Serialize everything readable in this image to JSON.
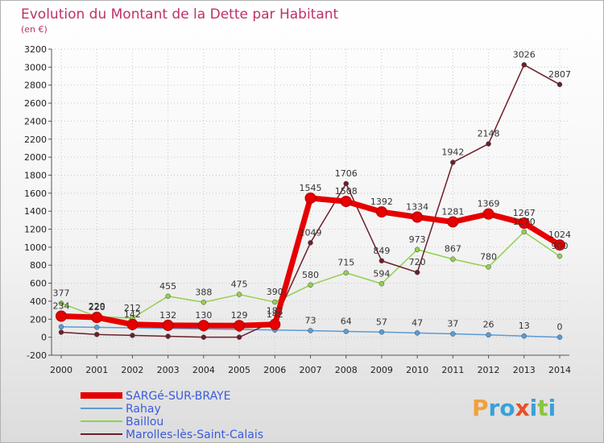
{
  "chart_data": {
    "type": "line",
    "title": "Evolution du Montant de la Dette par Habitant",
    "subtitle": "(en €)",
    "xlabel": "",
    "ylabel": "",
    "ylim": [
      -200,
      3200
    ],
    "ytick_step": 200,
    "x": [
      "2000",
      "2001",
      "2002",
      "2003",
      "2004",
      "2005",
      "2006",
      "2007",
      "2008",
      "2009",
      "2010",
      "2011",
      "2012",
      "2013",
      "2014"
    ],
    "series": [
      {
        "name": "SARGé-SUR-BRAYE",
        "color": "#e60000",
        "style": "thick",
        "values": [
          234,
          220,
          142,
          132,
          130,
          129,
          142,
          1545,
          1508,
          1392,
          1334,
          1281,
          1369,
          1267,
          1024
        ],
        "labels": [
          "234",
          "220",
          "142",
          "132",
          "130",
          "129",
          "142",
          "1545",
          "1508",
          "1392",
          "1334",
          "1281",
          "1369",
          "1267",
          "1024"
        ]
      },
      {
        "name": "Rahay",
        "color": "#5b9bd5",
        "style": "thin",
        "values": [
          115,
          110,
          104,
          98,
          92,
          86,
          80,
          73,
          64,
          57,
          47,
          37,
          26,
          13,
          0
        ],
        "labels": [
          "",
          "",
          "",
          "",
          "",
          "",
          "",
          "73",
          "64",
          "57",
          "47",
          "37",
          "26",
          "13",
          "0"
        ]
      },
      {
        "name": "Baillou",
        "color": "#92d050",
        "style": "thin",
        "values": [
          377,
          229,
          212,
          455,
          388,
          475,
          390,
          580,
          715,
          594,
          973,
          867,
          780,
          1170,
          900
        ],
        "labels": [
          "377",
          "229",
          "212",
          "455",
          "388",
          "475",
          "390",
          "580",
          "715",
          "594",
          "973",
          "867",
          "780",
          "1170",
          "900"
        ]
      },
      {
        "name": "Marolles-lès-Saint-Calais",
        "color": "#6b1f2a",
        "style": "thin",
        "values": [
          55,
          30,
          20,
          10,
          0,
          0,
          182,
          1049,
          1706,
          849,
          720,
          1942,
          2148,
          3026,
          2807
        ],
        "labels": [
          "",
          "",
          "",
          "",
          "",
          "",
          "182",
          "1049",
          "1706",
          "849",
          "720",
          "1942",
          "2148",
          "3026",
          "2807"
        ]
      }
    ]
  },
  "logo": {
    "text": "Proxiti"
  }
}
